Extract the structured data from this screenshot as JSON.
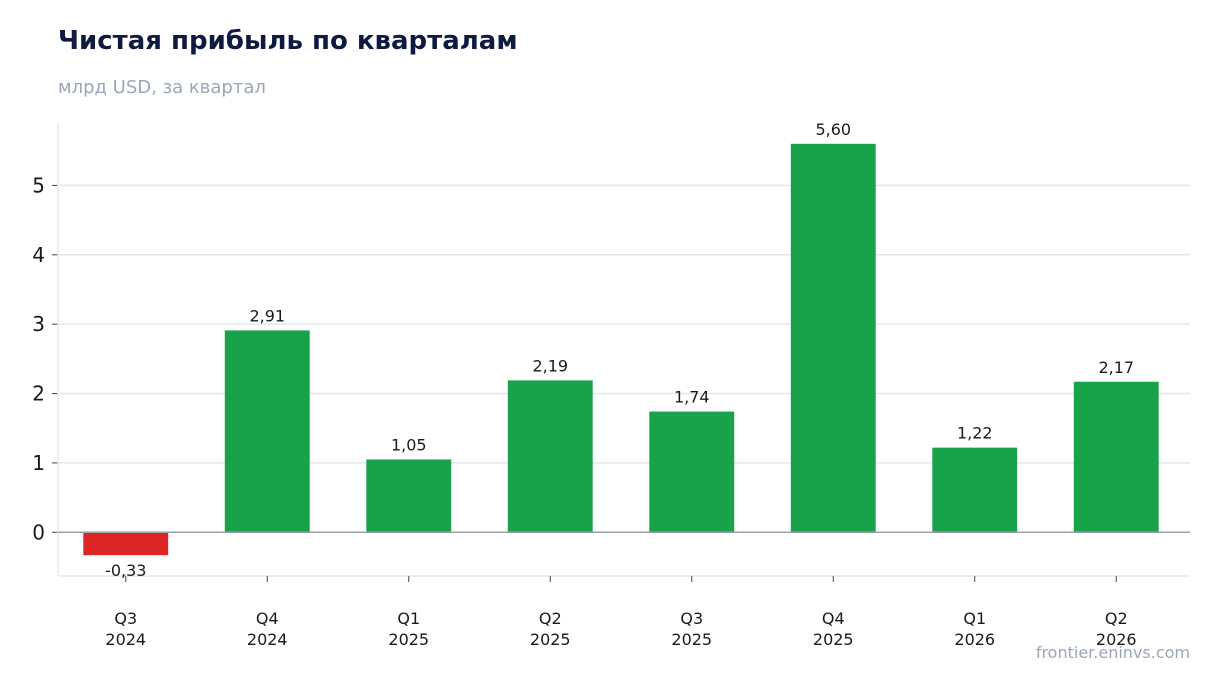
{
  "chart": {
    "title": "Чистая прибыль по кварталам",
    "subtitle": "млрд USD, за квартал",
    "source": "frontier.eninvs.com"
  },
  "chart_data": {
    "type": "bar",
    "categories": [
      [
        "Q3",
        "2024"
      ],
      [
        "Q4",
        "2024"
      ],
      [
        "Q1",
        "2025"
      ],
      [
        "Q2",
        "2025"
      ],
      [
        "Q3",
        "2025"
      ],
      [
        "Q4",
        "2025"
      ],
      [
        "Q1",
        "2026"
      ],
      [
        "Q2",
        "2026"
      ]
    ],
    "values": [
      -0.33,
      2.91,
      1.05,
      2.19,
      1.74,
      5.6,
      1.22,
      2.17
    ],
    "value_labels": [
      "-0,33",
      "2,91",
      "1,05",
      "2,19",
      "1,74",
      "5,60",
      "1,22",
      "2,17"
    ],
    "yticks": [
      0,
      1,
      2,
      3,
      4,
      5
    ],
    "ylim": [
      -0.63,
      5.9
    ],
    "grid": true,
    "colors": {
      "positive": "#18a34a",
      "negative": "#dc2626",
      "grid": "#e2e6ee",
      "zero": "#9aa0a8",
      "axis": "#e6e8ec"
    }
  }
}
